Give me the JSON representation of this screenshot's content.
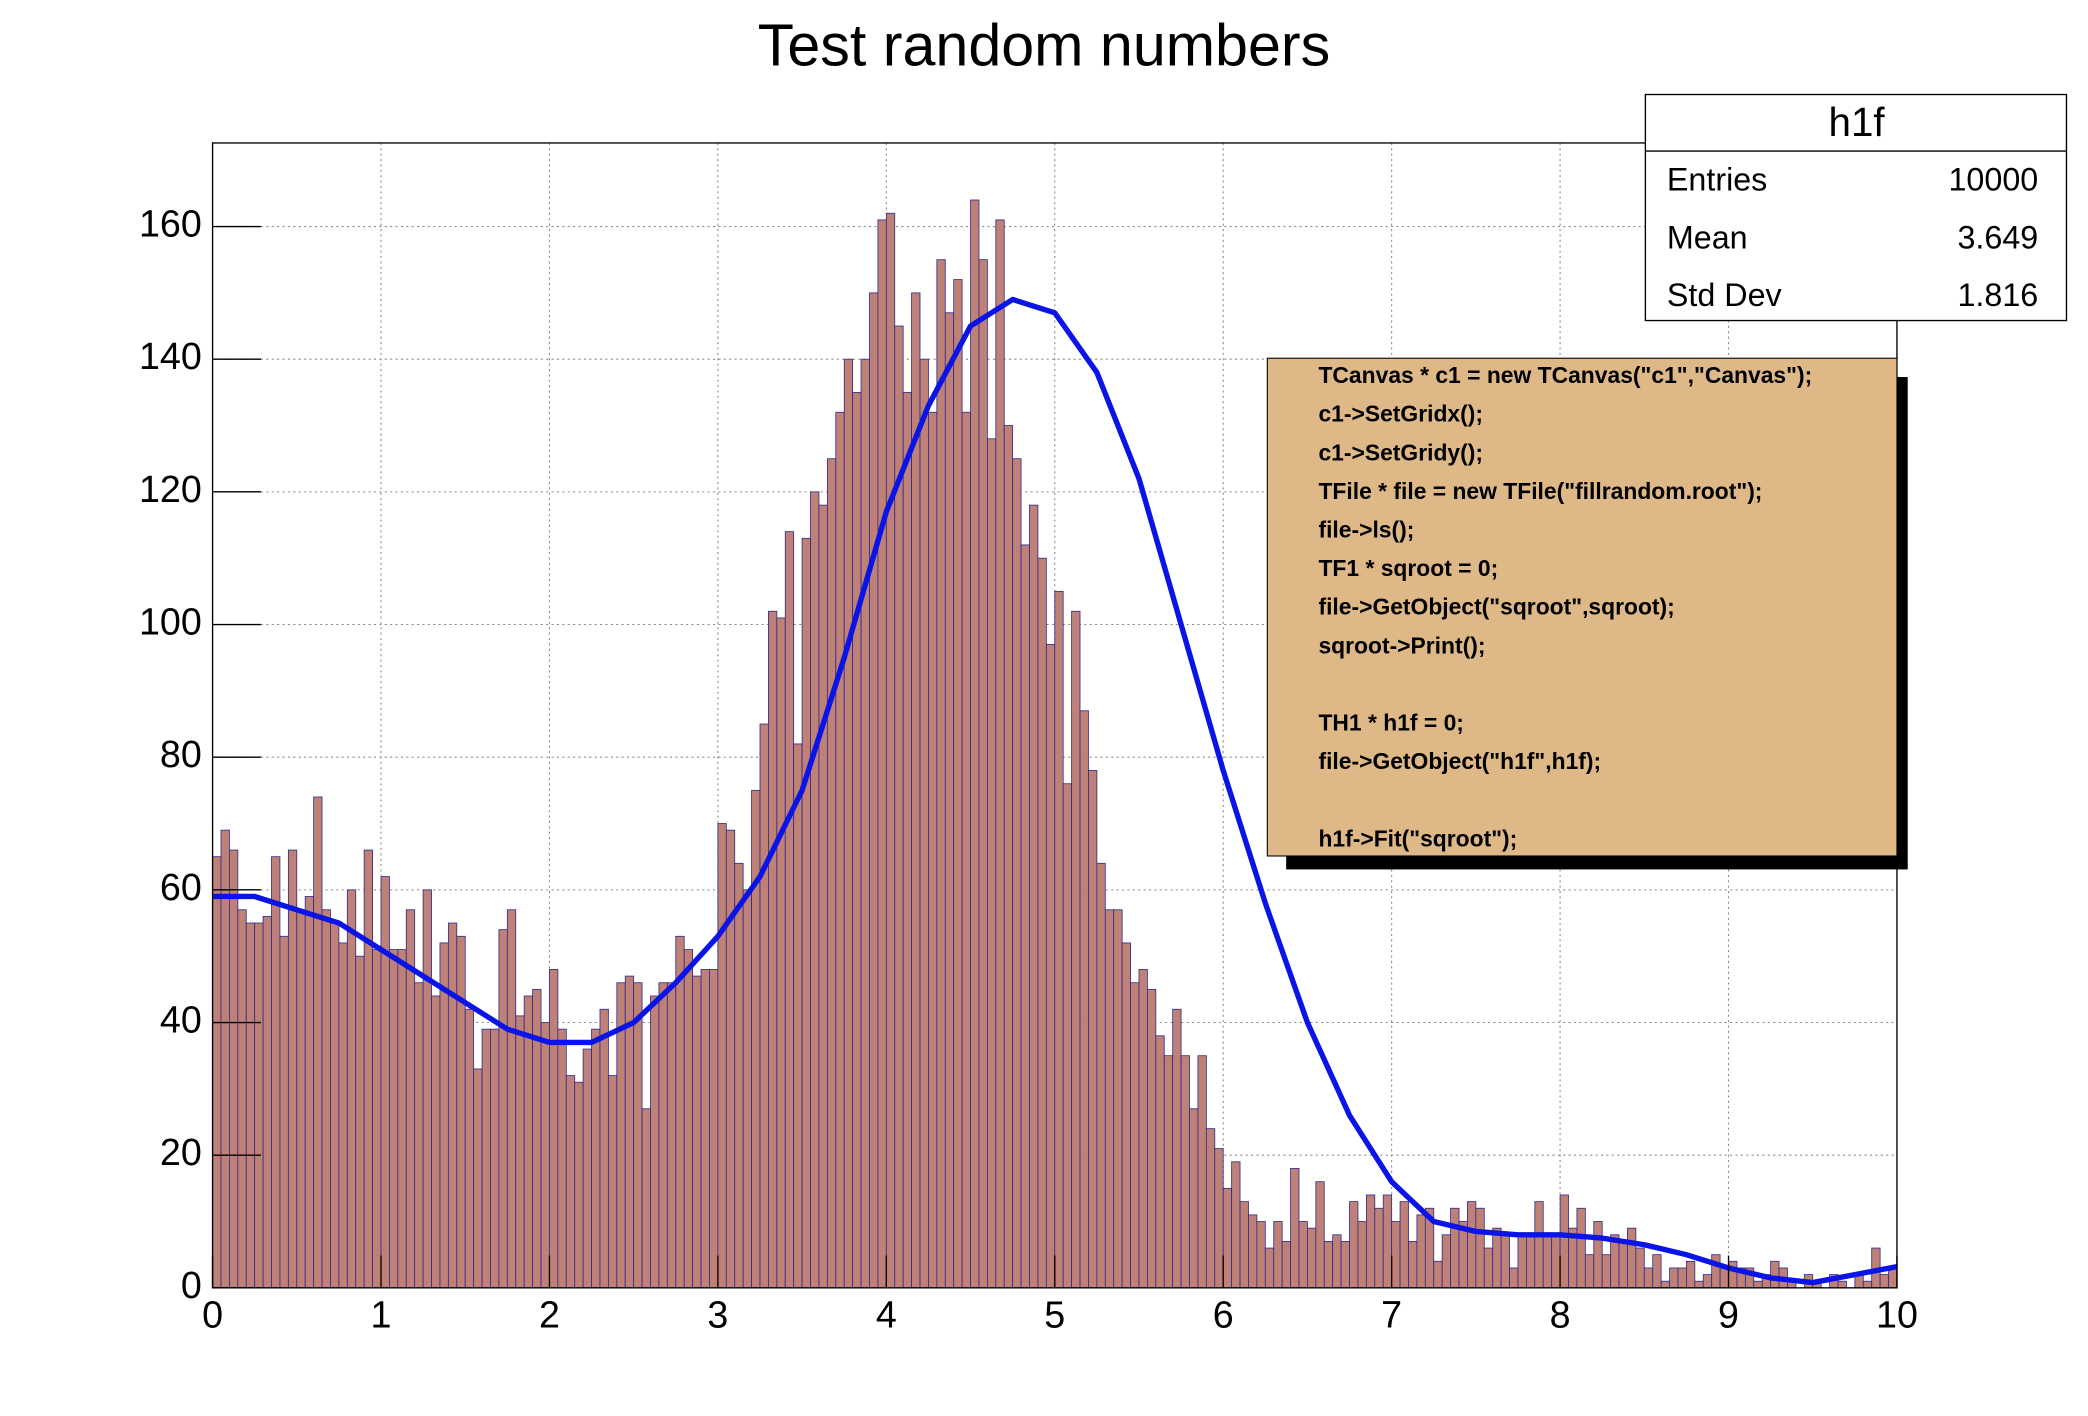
{
  "chart_data": {
    "type": "histogram",
    "title": "Test random numbers",
    "bins": [
      0,
      0.05,
      0.1,
      0.15,
      0.2,
      0.25,
      0.3,
      0.35,
      0.4,
      0.45,
      0.5,
      0.55,
      0.6,
      0.65,
      0.7,
      0.75,
      0.8,
      0.85,
      0.9,
      0.95,
      1,
      1.05,
      1.1,
      1.15,
      1.2,
      1.25,
      1.3,
      1.35,
      1.4,
      1.45,
      1.5,
      1.55,
      1.6,
      1.65,
      1.7,
      1.75,
      1.8,
      1.85,
      1.9,
      1.95,
      2,
      2.05,
      2.1,
      2.15,
      2.2,
      2.25,
      2.3,
      2.35,
      2.4,
      2.45,
      2.5,
      2.55,
      2.6,
      2.65,
      2.7,
      2.75,
      2.8,
      2.85,
      2.9,
      2.95,
      3,
      3.05,
      3.1,
      3.15,
      3.2,
      3.25,
      3.3,
      3.35,
      3.4,
      3.45,
      3.5,
      3.55,
      3.6,
      3.65,
      3.7,
      3.75,
      3.8,
      3.85,
      3.9,
      3.95,
      4,
      4.05,
      4.1,
      4.15,
      4.2,
      4.25,
      4.3,
      4.35,
      4.4,
      4.45,
      4.5,
      4.55,
      4.6,
      4.65,
      4.7,
      4.75,
      4.8,
      4.85,
      4.9,
      4.95,
      5,
      5.05,
      5.1,
      5.15,
      5.2,
      5.25,
      5.3,
      5.35,
      5.4,
      5.45,
      5.5,
      5.55,
      5.6,
      5.65,
      5.7,
      5.75,
      5.8,
      5.85,
      5.9,
      5.95,
      6,
      6.05,
      6.1,
      6.15,
      6.2,
      6.25,
      6.3,
      6.35,
      6.4,
      6.45,
      6.5,
      6.55,
      6.6,
      6.65,
      6.7,
      6.75,
      6.8,
      6.85,
      6.9,
      6.95,
      7,
      7.05,
      7.1,
      7.15,
      7.2,
      7.25,
      7.3,
      7.35,
      7.4,
      7.45,
      7.5,
      7.55,
      7.6,
      7.65,
      7.7,
      7.75,
      7.8,
      7.85,
      7.9,
      7.95,
      8,
      8.05,
      8.1,
      8.15,
      8.2,
      8.25,
      8.3,
      8.35,
      8.4,
      8.45,
      8.5,
      8.55,
      8.6,
      8.65,
      8.7,
      8.75,
      8.8,
      8.85,
      8.9,
      8.95,
      9,
      9.05,
      9.1,
      9.15,
      9.2,
      9.25,
      9.3,
      9.35,
      9.4,
      9.45,
      9.5,
      9.55,
      9.6,
      9.65,
      9.7,
      9.75,
      9.8,
      9.85,
      9.9,
      9.95,
      10
    ],
    "values": [
      65,
      69,
      66,
      57,
      55,
      55,
      56,
      65,
      53,
      66,
      57,
      59,
      74,
      57,
      55,
      52,
      60,
      50,
      66,
      51,
      62,
      51,
      51,
      57,
      46,
      60,
      44,
      52,
      55,
      53,
      42,
      33,
      39,
      39,
      54,
      57,
      41,
      44,
      45,
      40,
      48,
      39,
      32,
      31,
      36,
      39,
      42,
      32,
      46,
      47,
      46,
      27,
      44,
      46,
      46,
      53,
      51,
      47,
      48,
      48,
      70,
      69,
      64,
      60,
      75,
      85,
      102,
      101,
      114,
      82,
      113,
      120,
      118,
      125,
      132,
      140,
      135,
      140,
      150,
      161,
      162,
      145,
      135,
      150,
      140,
      132,
      155,
      147,
      152,
      132,
      164,
      155,
      128,
      161,
      130,
      125,
      112,
      118,
      110,
      97,
      105,
      76,
      102,
      87,
      78,
      64,
      57,
      57,
      52,
      46,
      48,
      45,
      38,
      35,
      42,
      35,
      27,
      35,
      24,
      21,
      15,
      19,
      13,
      11,
      10,
      6,
      10,
      7,
      18,
      10,
      9,
      16,
      7,
      8,
      7,
      13,
      10,
      14,
      12,
      14,
      10,
      13,
      7,
      11,
      12,
      4,
      8,
      12,
      10,
      13,
      12,
      6,
      9,
      8,
      3,
      8,
      8,
      13,
      8,
      8,
      14,
      9,
      12,
      5,
      10,
      5,
      8,
      7,
      9,
      6,
      3,
      5,
      1,
      3,
      3,
      4,
      1,
      2,
      5,
      3,
      4,
      3,
      3,
      1,
      2,
      4,
      3,
      1,
      0,
      2,
      1,
      0,
      2,
      1,
      0,
      2,
      1,
      6,
      2,
      3
    ],
    "color": "#bf8076",
    "edge_color": "#2b2b8f",
    "fit": {
      "color": "#0a14e6",
      "x": [
        0,
        0.25,
        0.5,
        0.75,
        1,
        1.25,
        1.5,
        1.75,
        2,
        2.25,
        2.5,
        2.75,
        3,
        3.25,
        3.5,
        3.75,
        4,
        4.25,
        4.5,
        4.75,
        5,
        5.25,
        5.5,
        5.75,
        6,
        6.25,
        6.5,
        6.75,
        7,
        7.25,
        7.5,
        7.75,
        8,
        8.25,
        8.5,
        8.75,
        9,
        9.25,
        9.5,
        9.75,
        10
      ],
      "values": [
        59,
        59,
        57,
        55,
        51,
        47,
        43,
        39,
        37,
        37,
        40,
        46,
        53,
        62,
        75,
        95,
        117,
        133,
        145,
        149,
        147,
        138,
        122,
        100,
        78,
        58,
        40,
        26,
        16,
        10,
        8.5,
        8,
        8,
        7.5,
        6.5,
        5,
        3,
        1.5,
        0.8,
        2,
        3.2
      ]
    },
    "xlim": [
      0,
      10
    ],
    "xticks": [
      0,
      1,
      2,
      3,
      4,
      5,
      6,
      7,
      8,
      9,
      10
    ],
    "ylim": [
      0,
      172.6
    ],
    "yticks": [
      0,
      20,
      40,
      60,
      80,
      100,
      120,
      140,
      160
    ],
    "grid": true,
    "stats": {
      "title": "h1f",
      "rows": [
        {
          "label": "Entries",
          "value": 10000
        },
        {
          "label": "Mean",
          "value": 3.649
        },
        {
          "label": "Std Dev",
          "value": 1.816
        }
      ]
    },
    "code": [
      [
        "TCanvas * c1 = new TCanvas(\"c1\",\"Canvas\");",
        "c1->SetGridx();",
        "c1->SetGridy();",
        "TFile * file = new TFile(\"fillrandom.root\");",
        "file->ls();",
        "TF1 * sqroot = 0;",
        "file->GetObject(\"sqroot\",sqroot);",
        "sqroot->Print();"
      ],
      [
        "TH1 * h1f = 0;",
        "file->GetObject(\"h1f\",h1f);"
      ],
      [
        "h1f->Fit(\"sqroot\");"
      ]
    ]
  }
}
